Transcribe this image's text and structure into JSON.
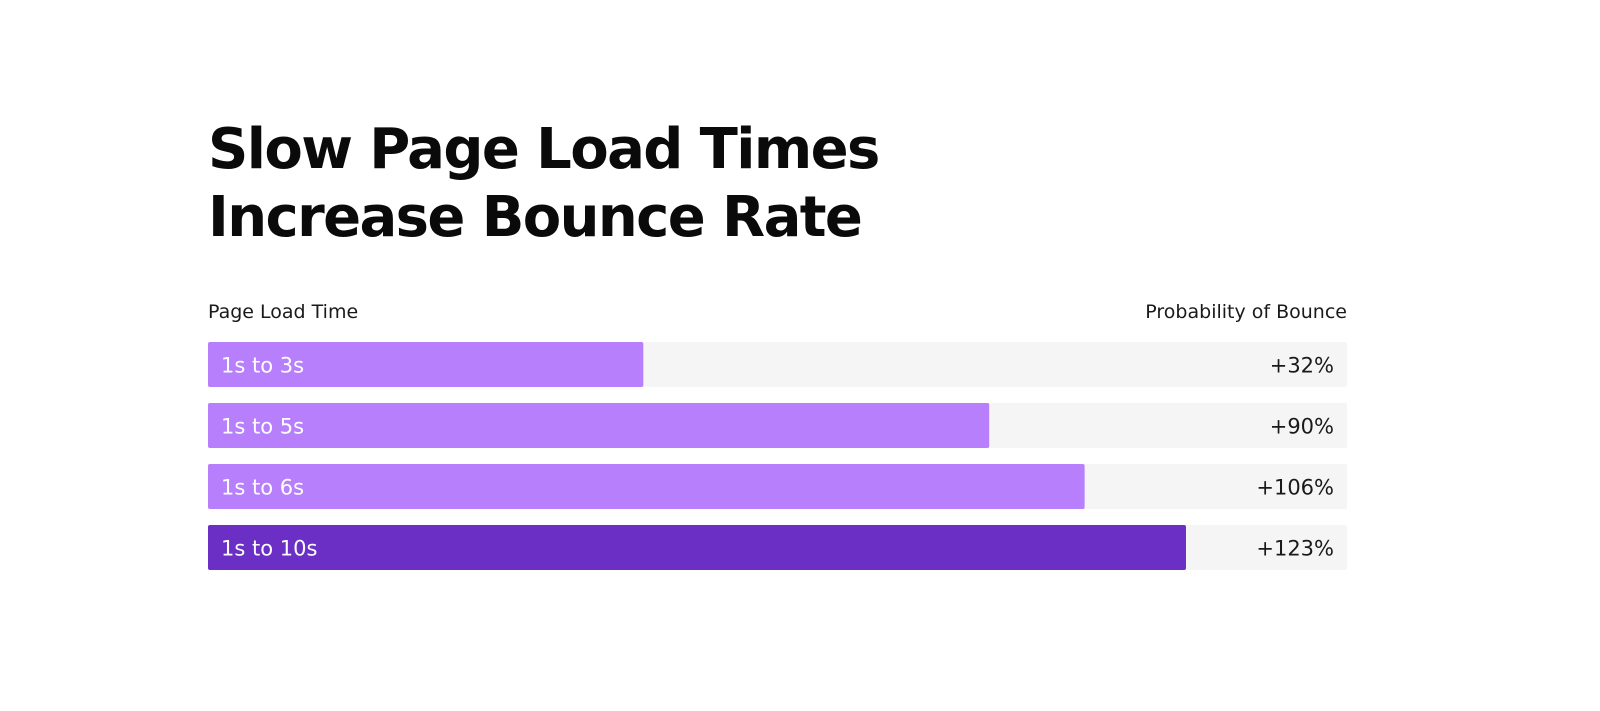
{
  "chart_data": {
    "type": "bar",
    "orientation": "horizontal",
    "title": "Slow Page Load Times Increase Bounce Rate",
    "xlabel": "Page Load Time",
    "ylabel": "Probability of Bounce",
    "categories": [
      "1s to 3s",
      "1s to 5s",
      "1s to 6s",
      "1s to 10s"
    ],
    "values": [
      32,
      90,
      106,
      123
    ],
    "value_labels": [
      "+32%",
      "+90%",
      "+106%",
      "+123%"
    ],
    "xlim": [
      -41,
      150
    ],
    "grid": false,
    "legend": "none",
    "colors": {
      "track": "#f5f5f5",
      "bar": "#b77ffc",
      "highlight": "#6b2fc6",
      "highlight_index": 3
    }
  }
}
